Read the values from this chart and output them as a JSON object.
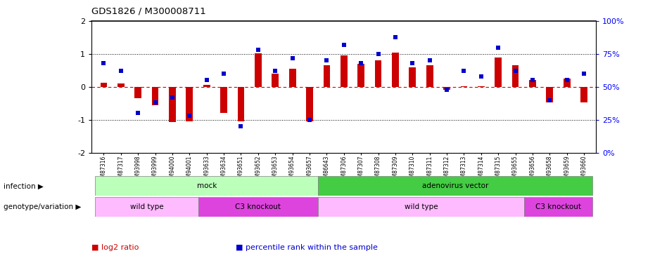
{
  "title": "GDS1826 / M300008711",
  "samples": [
    "GSM87316",
    "GSM87317",
    "GSM93998",
    "GSM93999",
    "GSM94000",
    "GSM94001",
    "GSM93633",
    "GSM93634",
    "GSM93651",
    "GSM93652",
    "GSM93653",
    "GSM93654",
    "GSM93657",
    "GSM86643",
    "GSM87306",
    "GSM87307",
    "GSM87308",
    "GSM87309",
    "GSM87310",
    "GSM87311",
    "GSM87312",
    "GSM87313",
    "GSM87314",
    "GSM87315",
    "GSM93655",
    "GSM93656",
    "GSM93658",
    "GSM93659",
    "GSM93660"
  ],
  "log2_ratio": [
    0.12,
    0.1,
    -0.35,
    -0.55,
    -1.08,
    -1.05,
    0.05,
    -0.8,
    -1.05,
    1.02,
    0.4,
    0.55,
    -1.05,
    0.65,
    0.95,
    0.7,
    0.8,
    1.05,
    0.6,
    0.65,
    -0.08,
    0.02,
    0.02,
    0.9,
    0.65,
    0.2,
    -0.48,
    0.25,
    -0.48
  ],
  "percentile": [
    68,
    62,
    30,
    38,
    42,
    28,
    55,
    60,
    20,
    78,
    62,
    72,
    25,
    70,
    82,
    68,
    75,
    88,
    68,
    70,
    48,
    62,
    58,
    80,
    62,
    55,
    40,
    55,
    60
  ],
  "bar_color": "#cc0000",
  "dot_color": "#0000cc",
  "ylim_left": [
    -2,
    2
  ],
  "ylim_right": [
    0,
    100
  ],
  "yticks_left": [
    -2,
    -1,
    0,
    1,
    2
  ],
  "yticks_right": [
    0,
    25,
    50,
    75,
    100
  ],
  "hline_color": "#cc0000",
  "dotted_color": "black",
  "infection_groups": [
    {
      "label": "mock",
      "start": 0,
      "end": 13,
      "color": "#bbffbb"
    },
    {
      "label": "adenovirus vector",
      "start": 13,
      "end": 29,
      "color": "#44cc44"
    }
  ],
  "genotype_groups": [
    {
      "label": "wild type",
      "start": 0,
      "end": 6,
      "color": "#ffbbff"
    },
    {
      "label": "C3 knockout",
      "start": 6,
      "end": 13,
      "color": "#dd44dd"
    },
    {
      "label": "wild type",
      "start": 13,
      "end": 25,
      "color": "#ffbbff"
    },
    {
      "label": "C3 knockout",
      "start": 25,
      "end": 29,
      "color": "#dd44dd"
    }
  ],
  "legend_items": [
    {
      "label": "log2 ratio",
      "color": "#cc0000",
      "marker": "s"
    },
    {
      "label": "percentile rank within the sample",
      "color": "#0000cc",
      "marker": "s"
    }
  ],
  "bar_width": 0.4,
  "dot_size": 4.5
}
